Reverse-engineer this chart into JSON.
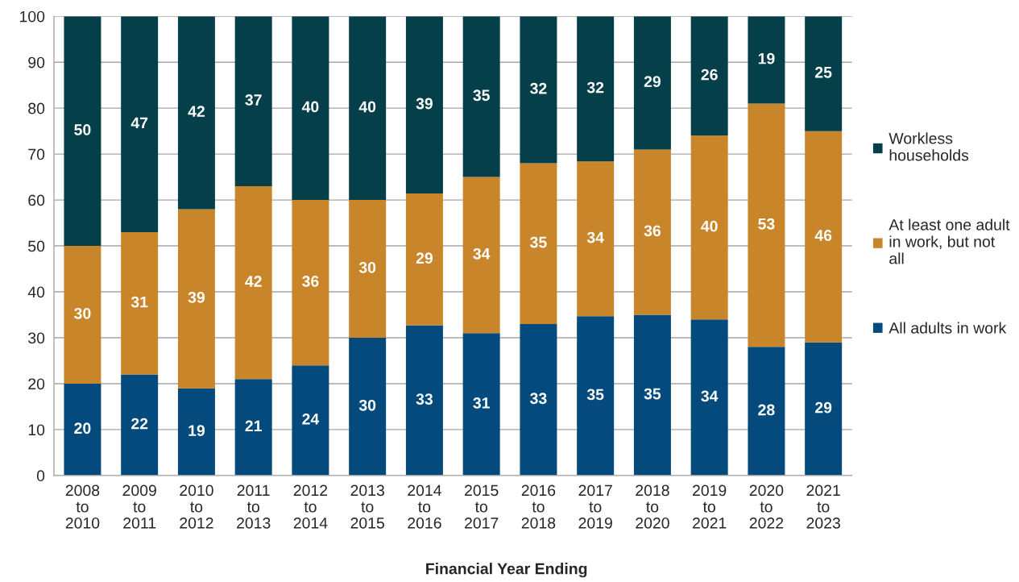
{
  "chart_data": {
    "type": "bar",
    "stacked": true,
    "xlabel": "Financial Year Ending",
    "categories": [
      "2008\nto\n2010",
      "2009\nto\n2011",
      "2010\nto\n2012",
      "2011\nto\n2013",
      "2012\nto\n2014",
      "2013\nto\n2015",
      "2014\nto\n2016",
      "2015\nto\n2017",
      "2016\nto\n2018",
      "2017\nto\n2019",
      "2018\nto\n2020",
      "2019\nto\n2021",
      "2020\nto\n2022",
      "2021\nto\n2023"
    ],
    "series": [
      {
        "name": "All adults in work",
        "color": "#044a7c",
        "values": [
          20,
          22,
          19,
          21,
          24,
          30,
          32.7,
          31,
          33,
          34.7,
          35,
          34,
          28,
          29
        ],
        "value_labels": [
          "20",
          "22",
          "19",
          "21",
          "24",
          "30",
          "33",
          "31",
          "33",
          "35",
          "35",
          "34",
          "28",
          "29"
        ]
      },
      {
        "name": "At least one adult\nin work, but not\nall",
        "color": "#c8852a",
        "values": [
          30,
          31,
          39,
          42,
          36,
          30,
          28.7,
          34,
          35,
          33.7,
          36,
          40,
          53,
          46
        ],
        "value_labels": [
          "30",
          "31",
          "39",
          "42",
          "36",
          "30",
          "29",
          "34",
          "35",
          "34",
          "36",
          "40",
          "53",
          "46"
        ]
      },
      {
        "name": "Workless\nhouseholds",
        "color": "#043f4a",
        "values": [
          50,
          47,
          42,
          37,
          40,
          40,
          38.6,
          35,
          32,
          31.6,
          29,
          26,
          19,
          25
        ],
        "value_labels": [
          "50",
          "47",
          "42",
          "37",
          "40",
          "40",
          "39",
          "35",
          "32",
          "32",
          "29",
          "26",
          "19",
          "25"
        ]
      }
    ],
    "ylim": [
      0,
      100
    ],
    "yticks": [
      0,
      10,
      20,
      30,
      40,
      50,
      60,
      70,
      80,
      90,
      100
    ],
    "grid": "y",
    "legend": "right"
  }
}
